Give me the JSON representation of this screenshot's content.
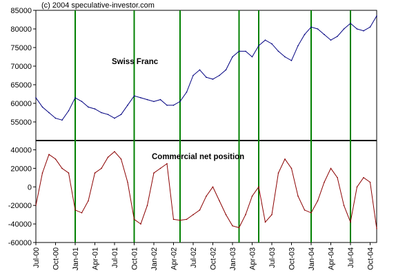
{
  "copyright": "(c) 2004 speculative-investor.com",
  "chart_data": [
    {
      "type": "line",
      "title": "Swiss Franc",
      "xlabel": "",
      "ylabel": "",
      "ylim": [
        50000,
        85000
      ],
      "ytick_values": [
        55000,
        60000,
        65000,
        70000,
        75000,
        80000,
        85000
      ],
      "ytick_labels": [
        "55000",
        "60000",
        "65000",
        "70000",
        "75000",
        "80000",
        "85000"
      ],
      "x_range_months": [
        "2000-07",
        "2004-11"
      ],
      "xtick_labels": [
        "Jul-00",
        "Oct-00",
        "Jan-01",
        "Apr-01",
        "Jul-01",
        "Oct-01",
        "Jan-02",
        "Apr-02",
        "Jul-02",
        "Oct-02",
        "Jan-03",
        "Apr-03",
        "Jul-03",
        "Oct-03",
        "Jan-04",
        "Apr-04",
        "Jul-04",
        "Oct-04"
      ],
      "grid": false,
      "series": [
        {
          "color": "#000080",
          "x": [
            "2000-07",
            "2000-08",
            "2000-09",
            "2000-10",
            "2000-11",
            "2000-12",
            "2001-01",
            "2001-02",
            "2001-03",
            "2001-04",
            "2001-05",
            "2001-06",
            "2001-07",
            "2001-08",
            "2001-09",
            "2001-10",
            "2001-11",
            "2001-12",
            "2002-01",
            "2002-02",
            "2002-03",
            "2002-04",
            "2002-05",
            "2002-06",
            "2002-07",
            "2002-08",
            "2002-09",
            "2002-10",
            "2002-11",
            "2002-12",
            "2003-01",
            "2003-02",
            "2003-03",
            "2003-04",
            "2003-05",
            "2003-06",
            "2003-07",
            "2003-08",
            "2003-09",
            "2003-10",
            "2003-11",
            "2003-12",
            "2004-01",
            "2004-02",
            "2004-03",
            "2004-04",
            "2004-05",
            "2004-06",
            "2004-07",
            "2004-08",
            "2004-09",
            "2004-10",
            "2004-11"
          ],
          "values": [
            61500,
            59000,
            57500,
            56000,
            55500,
            58000,
            61500,
            60500,
            59000,
            58500,
            57500,
            57000,
            56000,
            57000,
            59500,
            62000,
            61500,
            61000,
            60500,
            61000,
            59500,
            59500,
            60500,
            63000,
            67500,
            69000,
            67000,
            66500,
            67500,
            69000,
            72500,
            74000,
            74000,
            72500,
            75500,
            77000,
            76000,
            74000,
            72500,
            71500,
            75500,
            78500,
            80500,
            80000,
            78500,
            77000,
            78000,
            80000,
            81500,
            80000,
            79500,
            80500,
            83500
          ]
        }
      ]
    },
    {
      "type": "line",
      "title": "Commercial net position",
      "xlabel": "",
      "ylabel": "",
      "ylim": [
        -60000,
        50000
      ],
      "ytick_values": [
        40000,
        20000,
        0,
        -20000,
        -40000,
        -60000
      ],
      "ytick_labels": [
        "40000",
        "20000",
        "0",
        "-20000",
        "-40000",
        "-60000"
      ],
      "grid": false,
      "series": [
        {
          "color": "#8b0000",
          "x": [
            "2000-07",
            "2000-08",
            "2000-09",
            "2000-10",
            "2000-11",
            "2000-12",
            "2001-01",
            "2001-02",
            "2001-03",
            "2001-04",
            "2001-05",
            "2001-06",
            "2001-07",
            "2001-08",
            "2001-09",
            "2001-10",
            "2001-11",
            "2001-12",
            "2002-01",
            "2002-02",
            "2002-03",
            "2002-04",
            "2002-05",
            "2002-06",
            "2002-07",
            "2002-08",
            "2002-09",
            "2002-10",
            "2002-11",
            "2002-12",
            "2003-01",
            "2003-02",
            "2003-03",
            "2003-04",
            "2003-05",
            "2003-06",
            "2003-07",
            "2003-08",
            "2003-09",
            "2003-10",
            "2003-11",
            "2003-12",
            "2004-01",
            "2004-02",
            "2004-03",
            "2004-04",
            "2004-05",
            "2004-06",
            "2004-07",
            "2004-08",
            "2004-09",
            "2004-10",
            "2004-11"
          ],
          "values": [
            -20000,
            15000,
            35000,
            30000,
            20000,
            15000,
            -25000,
            -28000,
            -15000,
            15000,
            20000,
            32000,
            38000,
            30000,
            5000,
            -35000,
            -40000,
            -20000,
            15000,
            20000,
            25000,
            -35000,
            -36000,
            -35000,
            -30000,
            -25000,
            -10000,
            0,
            -15000,
            -30000,
            -42000,
            -44000,
            -30000,
            -10000,
            0,
            -38000,
            -30000,
            15000,
            30000,
            20000,
            -10000,
            -25000,
            -28000,
            -15000,
            5000,
            20000,
            10000,
            -20000,
            -38000,
            0,
            10000,
            5000,
            -45000
          ]
        }
      ]
    }
  ],
  "vertical_markers": [
    "2001-01",
    "2001-10",
    "2002-05",
    "2003-02",
    "2003-05",
    "2004-01",
    "2004-07"
  ],
  "marker_color": "#008000",
  "axis_color": "#000000"
}
